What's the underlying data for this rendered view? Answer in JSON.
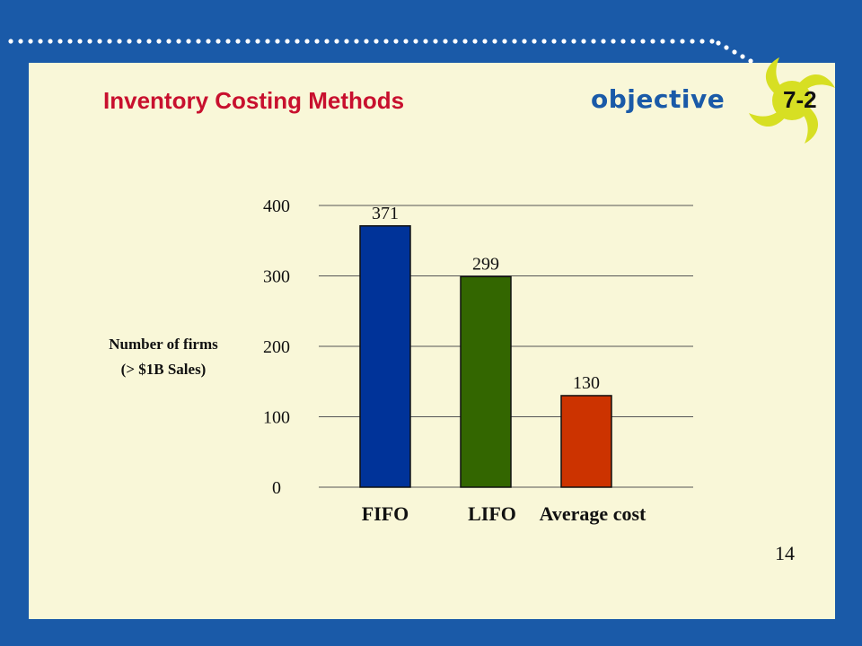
{
  "slide": {
    "title": "Inventory Costing Methods",
    "objective_label": "objective",
    "objective_number": "7-2",
    "page_number": "14"
  },
  "colors": {
    "background": "#1a5aa8",
    "panel": "#f9f7d8",
    "title": "#c8102e",
    "badge": "#d7df23"
  },
  "chart_data": {
    "type": "bar",
    "categories": [
      "FIFO",
      "LIFO",
      "Average cost"
    ],
    "values": [
      371,
      299,
      130
    ],
    "value_labels": [
      "371",
      "299",
      "130"
    ],
    "bar_colors": [
      "#003399",
      "#336600",
      "#cc3300"
    ],
    "title": "",
    "xlabel": "",
    "ylabel": [
      "Number of firms",
      "(> $1B Sales)"
    ],
    "ylim": [
      0,
      400
    ],
    "yticks": [
      0,
      100,
      200,
      300,
      400
    ],
    "grid": true
  }
}
